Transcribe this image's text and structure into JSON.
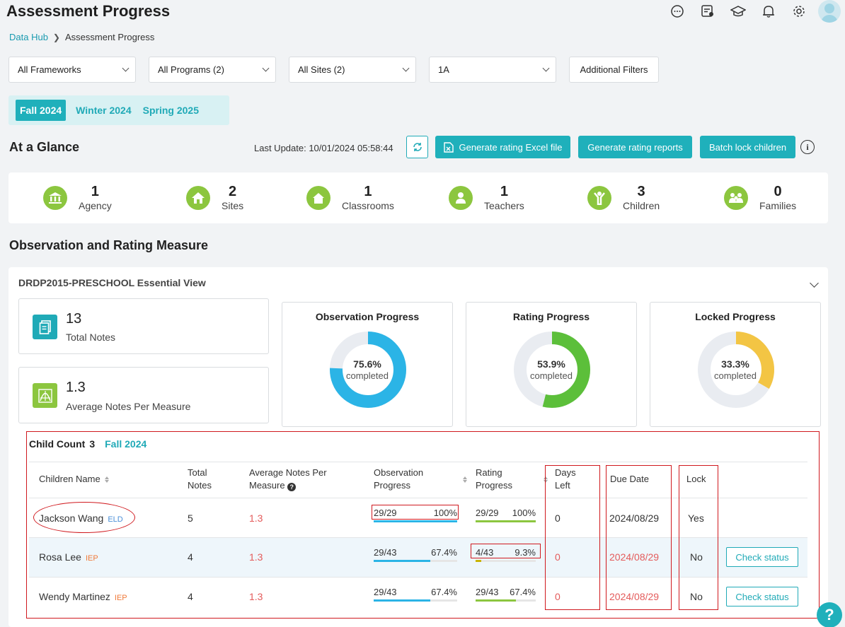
{
  "page": {
    "title": "Assessment Progress"
  },
  "header_icons": [
    "chat-icon",
    "document-user-icon",
    "graduation-cap-icon",
    "bell-icon",
    "gear-icon",
    "avatar"
  ],
  "breadcrumb": {
    "root": "Data Hub",
    "current": "Assessment Progress"
  },
  "filters": {
    "framework": "All Frameworks",
    "programs": "All Programs (2)",
    "sites": "All Sites (2)",
    "classroom": "1A",
    "additional": "Additional Filters"
  },
  "seasons": [
    {
      "label": "Fall 2024",
      "active": true
    },
    {
      "label": "Winter 2024",
      "active": false
    },
    {
      "label": "Spring 2025",
      "active": false
    }
  ],
  "glance": {
    "title": "At a Glance",
    "last_update": "Last Update: 10/01/2024 05:58:44",
    "generate_excel": "Generate rating Excel file",
    "generate_reports": "Generate rating reports",
    "batch_lock": "Batch lock children",
    "stats": [
      {
        "value": "1",
        "label": "Agency",
        "icon": "bank-icon"
      },
      {
        "value": "2",
        "label": "Sites",
        "icon": "home-icon"
      },
      {
        "value": "1",
        "label": "Classrooms",
        "icon": "house-icon"
      },
      {
        "value": "1",
        "label": "Teachers",
        "icon": "user-icon"
      },
      {
        "value": "3",
        "label": "Children",
        "icon": "child-icon"
      },
      {
        "value": "0",
        "label": "Families",
        "icon": "family-icon"
      }
    ]
  },
  "observation": {
    "title": "Observation and Rating Measure",
    "view_title": "DRDP2015-PRESCHOOL Essential View",
    "total_notes": {
      "value": "13",
      "label": "Total Notes"
    },
    "avg_notes": {
      "value": "1.3",
      "label": "Average Notes Per Measure"
    },
    "donuts": [
      {
        "title": "Observation Progress",
        "pct": "75.6%",
        "sub": "completed",
        "fraction": 0.756,
        "color": "#2bb4e6"
      },
      {
        "title": "Rating Progress",
        "pct": "53.9%",
        "sub": "completed",
        "fraction": 0.539,
        "color": "#5cbf3a"
      },
      {
        "title": "Locked Progress",
        "pct": "33.3%",
        "sub": "completed",
        "fraction": 0.333,
        "color": "#f3c544"
      }
    ]
  },
  "table": {
    "child_count_label": "Child Count",
    "child_count": "3",
    "season": "Fall 2024",
    "headers": {
      "name": "Children Name",
      "total_notes_1": "Total",
      "total_notes_2": "Notes",
      "avg_1": "Average Notes Per",
      "avg_2": "Measure",
      "obs_1": "Observation",
      "obs_2": "Progress",
      "rating_1": "Rating",
      "rating_2": "Progress",
      "days_1": "Days",
      "days_2": "Left",
      "due": "Due Date",
      "lock": "Lock"
    },
    "rows": [
      {
        "name": "Jackson Wang",
        "tag": "ELD",
        "total": "5",
        "avg": "1.3",
        "obs_frac": "29/29",
        "obs_pct": "100%",
        "obs_fill": 1.0,
        "rat_frac": "29/29",
        "rat_pct": "100%",
        "rat_fill": 1.0,
        "days": "0",
        "due": "2024/08/29",
        "lock": "Yes",
        "action": ""
      },
      {
        "name": "Rosa Lee",
        "tag": "IEP",
        "total": "4",
        "avg": "1.3",
        "obs_frac": "29/43",
        "obs_pct": "67.4%",
        "obs_fill": 0.674,
        "rat_frac": "4/43",
        "rat_pct": "9.3%",
        "rat_fill": 0.093,
        "days": "0",
        "due": "2024/08/29",
        "lock": "No",
        "action": "Check status"
      },
      {
        "name": "Wendy Martinez",
        "tag": "IEP",
        "total": "4",
        "avg": "1.3",
        "obs_frac": "29/43",
        "obs_pct": "67.4%",
        "obs_fill": 0.674,
        "rat_frac": "29/43",
        "rat_pct": "67.4%",
        "rat_fill": 0.674,
        "days": "0",
        "due": "2024/08/29",
        "lock": "No",
        "action": "Check status"
      }
    ]
  },
  "help": "?"
}
